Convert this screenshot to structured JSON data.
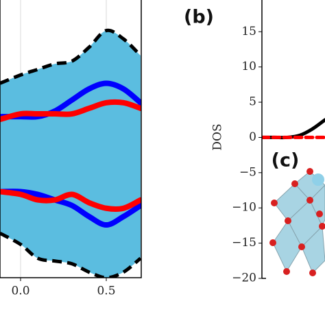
{
  "chart_data": [
    {
      "type": "line",
      "x": [
        -0.12,
        0,
        0.1,
        0.2,
        0.3,
        0.4,
        0.5,
        0.6,
        0.7
      ],
      "xlim": [
        -0.12,
        0.704
      ],
      "xticks": [
        {
          "value": 0,
          "label": "0.0"
        },
        {
          "value": 0.5,
          "label": "0.5"
        }
      ],
      "ylim": [
        0,
        1
      ],
      "grid": true,
      "fill_between": {
        "color": "#5bbde0",
        "upper": [
          0.7,
          0.73,
          0.75,
          0.77,
          0.78,
          0.83,
          0.89,
          0.86,
          0.8
        ],
        "lower": [
          0.16,
          0.12,
          0.07,
          0.06,
          0.05,
          0.02,
          0.0,
          0.02,
          0.07
        ]
      },
      "series": [
        {
          "color": "#0000ff",
          "values": [
            0.58,
            0.58,
            0.58,
            0.6,
            0.64,
            0.68,
            0.7,
            0.68,
            0.63
          ]
        },
        {
          "color": "#ff0000",
          "values": [
            0.57,
            0.59,
            0.59,
            0.59,
            0.59,
            0.61,
            0.63,
            0.63,
            0.61
          ]
        },
        {
          "color": "#0000ff",
          "values": [
            0.31,
            0.31,
            0.3,
            0.28,
            0.26,
            0.22,
            0.19,
            0.22,
            0.26
          ]
        },
        {
          "color": "#ff0000",
          "values": [
            0.31,
            0.3,
            0.28,
            0.28,
            0.3,
            0.27,
            0.25,
            0.25,
            0.28
          ]
        }
      ]
    },
    {
      "type": "line",
      "panel_label": "(b)",
      "inset_label": "(c)",
      "ylabel": "DOS",
      "x": [
        0,
        0.2,
        0.4,
        0.6,
        0.8,
        1
      ],
      "xlim": [
        0,
        1
      ],
      "ylim": [
        -20,
        19.5
      ],
      "yticks": [
        {
          "value": 15,
          "label": "15"
        },
        {
          "value": 10,
          "label": "10"
        },
        {
          "value": 5,
          "label": "5"
        },
        {
          "value": 0,
          "label": "0"
        },
        {
          "value": -5,
          "label": "−5"
        },
        {
          "value": -10,
          "label": "−10"
        },
        {
          "value": -15,
          "label": "−15"
        },
        {
          "value": -20,
          "label": "−20"
        }
      ],
      "series": [
        {
          "color": "#000000",
          "dashed": false,
          "values": [
            0,
            0,
            0,
            0.3,
            1.2,
            2.5
          ]
        },
        {
          "color": "#ff0000",
          "dashed": true,
          "values": [
            0,
            0,
            0,
            0,
            0,
            0
          ]
        }
      ]
    }
  ]
}
